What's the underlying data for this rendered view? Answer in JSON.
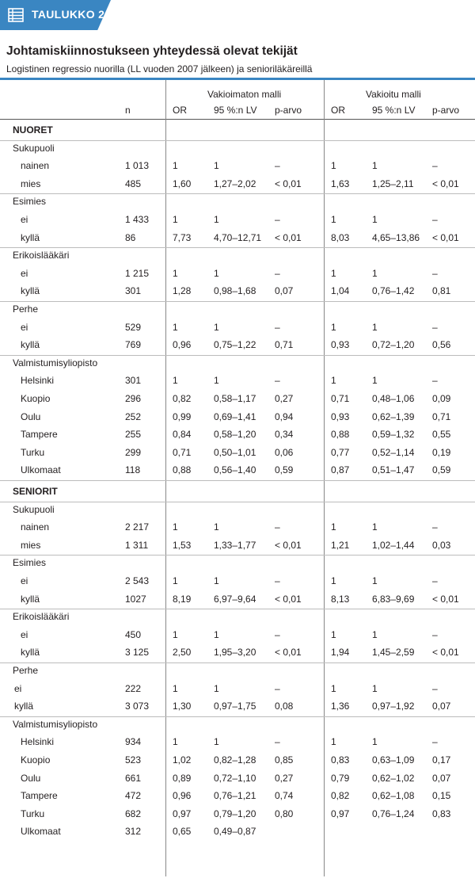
{
  "badge": {
    "label": "TAULUKKO 2.",
    "icon": "table-icon"
  },
  "title": "Johtamiskiinnostukseen yhteydessä olevat tekijät",
  "subtitle": "Logistinen regressio nuorilla (LL vuoden 2007 jälkeen) ja senioriläkäreillä",
  "groups": {
    "left": "Vakioimaton malli",
    "right": "Vakioitu malli"
  },
  "columns": [
    "n",
    "OR",
    "95 %:n LV",
    "p-arvo",
    "OR",
    "95 %:n LV",
    "p-arvo"
  ],
  "colors": {
    "accent": "#3a86c2"
  },
  "rows": [
    {
      "type": "section",
      "label": "NUORET"
    },
    {
      "type": "category",
      "label": "Sukupuoli"
    },
    {
      "type": "data",
      "label": "nainen",
      "v": [
        "1 013",
        "1",
        "1",
        "–",
        "1",
        "1",
        "–"
      ]
    },
    {
      "type": "data",
      "label": "mies",
      "v": [
        "485",
        "1,60",
        "1,27–2,02",
        "< 0,01",
        "1,63",
        "1,25–2,11",
        "< 0,01"
      ]
    },
    {
      "type": "category",
      "label": "Esimies"
    },
    {
      "type": "data",
      "label": "ei",
      "v": [
        "1 433",
        "1",
        "1",
        "–",
        "1",
        "1",
        "–"
      ]
    },
    {
      "type": "data",
      "label": "kyllä",
      "v": [
        "86",
        "7,73",
        "4,70–12,71",
        "< 0,01",
        "8,03",
        "4,65–13,86",
        "< 0,01"
      ]
    },
    {
      "type": "category",
      "label": "Erikoislääkäri"
    },
    {
      "type": "data",
      "label": "ei",
      "v": [
        "1 215",
        "1",
        "1",
        "–",
        "1",
        "1",
        "–"
      ]
    },
    {
      "type": "data",
      "label": "kyllä",
      "v": [
        "301",
        "1,28",
        "0,98–1,68",
        "0,07",
        "1,04",
        "0,76–1,42",
        "0,81"
      ]
    },
    {
      "type": "category",
      "label": "Perhe"
    },
    {
      "type": "data",
      "label": "ei",
      "v": [
        "529",
        "1",
        "1",
        "–",
        "1",
        "1",
        "–"
      ]
    },
    {
      "type": "data",
      "label": "kyllä",
      "v": [
        "769",
        "0,96",
        "0,75–1,22",
        "0,71",
        "0,93",
        "0,72–1,20",
        "0,56"
      ]
    },
    {
      "type": "category",
      "label": "Valmistumisyliopisto"
    },
    {
      "type": "data",
      "label": "Helsinki",
      "v": [
        "301",
        "1",
        "1",
        "–",
        "1",
        "1",
        "–"
      ]
    },
    {
      "type": "data",
      "label": "Kuopio",
      "v": [
        "296",
        "0,82",
        "0,58–1,17",
        "0,27",
        "0,71",
        "0,48–1,06",
        "0,09"
      ]
    },
    {
      "type": "data",
      "label": "Oulu",
      "v": [
        "252",
        "0,99",
        "0,69–1,41",
        "0,94",
        "0,93",
        "0,62–1,39",
        "0,71"
      ]
    },
    {
      "type": "data",
      "label": "Tampere",
      "v": [
        "255",
        "0,84",
        "0,58–1,20",
        "0,34",
        "0,88",
        "0,59–1,32",
        "0,55"
      ]
    },
    {
      "type": "data",
      "label": "Turku",
      "v": [
        "299",
        "0,71",
        "0,50–1,01",
        "0,06",
        "0,77",
        "0,52–1,14",
        "0,19"
      ]
    },
    {
      "type": "data",
      "label": "Ulkomaat",
      "v": [
        "118",
        "0,88",
        "0,56–1,40",
        "0,59",
        "0,87",
        "0,51–1,47",
        "0,59"
      ]
    },
    {
      "type": "section",
      "label": "SENIORIT"
    },
    {
      "type": "category",
      "label": "Sukupuoli"
    },
    {
      "type": "data",
      "label": "nainen",
      "v": [
        "2 217",
        "1",
        "1",
        "–",
        "1",
        "1",
        "–"
      ]
    },
    {
      "type": "data",
      "label": "mies",
      "v": [
        "1 311",
        "1,53",
        "1,33–1,77",
        "< 0,01",
        "1,21",
        "1,02–1,44",
        "0,03"
      ]
    },
    {
      "type": "category",
      "label": "Esimies"
    },
    {
      "type": "data",
      "label": "ei",
      "v": [
        "2 543",
        "1",
        "1",
        "–",
        "1",
        "1",
        "–"
      ]
    },
    {
      "type": "data",
      "label": "kyllä",
      "v": [
        "1027",
        "8,19",
        "6,97–9,64",
        "< 0,01",
        "8,13",
        "6,83–9,69",
        "< 0,01"
      ]
    },
    {
      "type": "category",
      "label": "Erikoislääkäri"
    },
    {
      "type": "data",
      "label": "ei",
      "v": [
        "450",
        "1",
        "1",
        "–",
        "1",
        "1",
        "–"
      ]
    },
    {
      "type": "data",
      "label": "kyllä",
      "v": [
        "3 125",
        "2,50",
        "1,95–3,20",
        "< 0,01",
        "1,94",
        "1,45–2,59",
        "< 0,01"
      ]
    },
    {
      "type": "category",
      "label": "Perhe"
    },
    {
      "type": "data",
      "label": "ei",
      "noindent": true,
      "v": [
        "222",
        "1",
        "1",
        "–",
        "1",
        "1",
        "–"
      ]
    },
    {
      "type": "data",
      "label": "kyllä",
      "noindent": true,
      "v": [
        "3 073",
        "1,30",
        "0,97–1,75",
        "0,08",
        "1,36",
        "0,97–1,92",
        "0,07"
      ]
    },
    {
      "type": "category",
      "label": "Valmistumisyliopisto"
    },
    {
      "type": "data",
      "label": "Helsinki",
      "v": [
        "934",
        "1",
        "1",
        "–",
        "1",
        "1",
        "–"
      ]
    },
    {
      "type": "data",
      "label": "Kuopio",
      "v": [
        "523",
        "1,02",
        "0,82–1,28",
        "0,85",
        "0,83",
        "0,63–1,09",
        "0,17"
      ]
    },
    {
      "type": "data",
      "label": "Oulu",
      "v": [
        "661",
        "0,89",
        "0,72–1,10",
        "0,27",
        "0,79",
        "0,62–1,02",
        "0,07"
      ]
    },
    {
      "type": "data",
      "label": "Tampere",
      "v": [
        "472",
        "0,96",
        "0,76–1,21",
        "0,74",
        "0,82",
        "0,62–1,08",
        "0,15"
      ]
    },
    {
      "type": "data",
      "label": "Turku",
      "v": [
        "682",
        "0,97",
        "0,79–1,20",
        "0,80",
        "0,97",
        "0,76–1,24",
        "0,83"
      ]
    },
    {
      "type": "data",
      "label": "Ulkomaat",
      "v": [
        "312",
        "0,65",
        "0,49–0,87",
        "",
        "",
        "",
        ""
      ]
    }
  ]
}
